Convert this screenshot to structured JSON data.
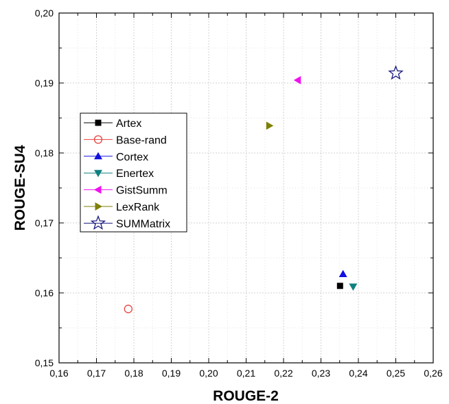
{
  "chart_data": {
    "type": "scatter",
    "xlabel": "ROUGE-2",
    "ylabel": "ROUGE-SU4",
    "xlim": [
      0.16,
      0.26
    ],
    "ylim": [
      0.15,
      0.2
    ],
    "x_ticks": [
      "0,16",
      "0,17",
      "0,18",
      "0,19",
      "0,20",
      "0,21",
      "0,22",
      "0,23",
      "0,24",
      "0,25",
      "0,26"
    ],
    "y_ticks": [
      "0,15",
      "0,16",
      "0,17",
      "0,18",
      "0,19",
      "0,20"
    ],
    "grid": true,
    "legend_position": "left-middle",
    "series": [
      {
        "name": "Artex",
        "marker": "square",
        "color": "#000000",
        "x": [
          0.2351
        ],
        "y": [
          0.161
        ]
      },
      {
        "name": "Base-rand",
        "marker": "circle-open",
        "color": "#e8413b",
        "x": [
          0.1785
        ],
        "y": [
          0.1577
        ]
      },
      {
        "name": "Cortex",
        "marker": "triangle-up",
        "color": "#1010e0",
        "x": [
          0.2359
        ],
        "y": [
          0.1627
        ]
      },
      {
        "name": "Enertex",
        "marker": "triangle-down",
        "color": "#0f8080",
        "x": [
          0.2386
        ],
        "y": [
          0.1609
        ]
      },
      {
        "name": "GistSumm",
        "marker": "triangle-left",
        "color": "#f010f0",
        "x": [
          0.2238
        ],
        "y": [
          0.1904
        ]
      },
      {
        "name": "LexRank",
        "marker": "triangle-right",
        "color": "#7f7f00",
        "x": [
          0.2162
        ],
        "y": [
          0.1839
        ]
      },
      {
        "name": "SUMMatrix",
        "marker": "star-open",
        "color": "#1a1a80",
        "x": [
          0.25
        ],
        "y": [
          0.1914
        ]
      }
    ]
  }
}
